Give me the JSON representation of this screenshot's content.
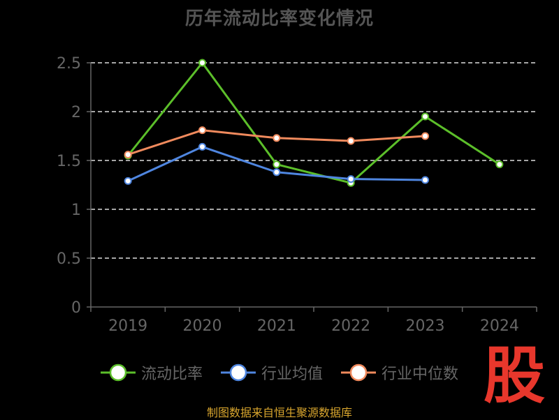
{
  "source_note": "制图数据来自恒生聚源数据库",
  "logo_text": "股",
  "colors": {
    "background": "#000000",
    "axis": "#666666",
    "grid": "#dddddd"
  },
  "chart_data": {
    "type": "line",
    "title": "历年流动比率变化情况",
    "categories": [
      "2019",
      "2020",
      "2021",
      "2022",
      "2023",
      "2024"
    ],
    "yticks": [
      "0",
      "0.5",
      "1",
      "1.5",
      "2",
      "2.5"
    ],
    "ylim": [
      0,
      2.5
    ],
    "grid": true,
    "legend_position": "bottom",
    "series": [
      {
        "name": "流动比率",
        "color": "#5cbf2a",
        "values": [
          1.55,
          2.5,
          1.46,
          1.27,
          1.95,
          1.46
        ]
      },
      {
        "name": "行业均值",
        "color": "#4f86e0",
        "values": [
          1.29,
          1.64,
          1.38,
          1.31,
          1.3,
          null
        ]
      },
      {
        "name": "行业中位数",
        "color": "#f08a5d",
        "values": [
          1.56,
          1.81,
          1.73,
          1.7,
          1.75,
          null
        ]
      }
    ]
  }
}
